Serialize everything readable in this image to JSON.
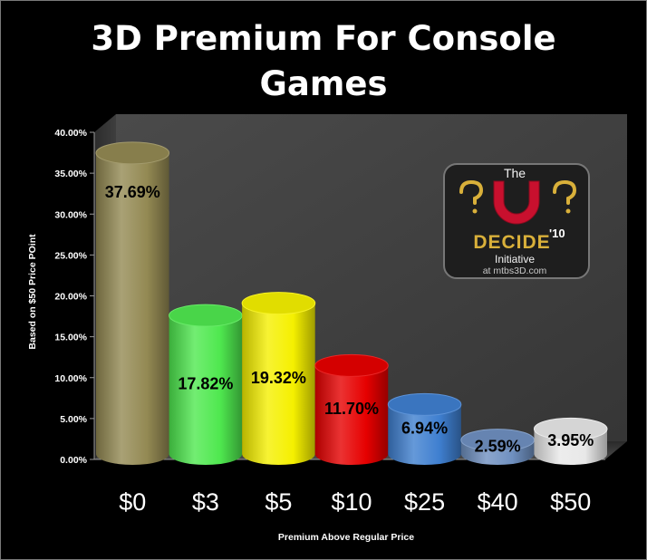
{
  "chart_data": {
    "type": "bar",
    "title": "3D Premium For Console\nGames",
    "categories": [
      "$0",
      "$3",
      "$5",
      "$10",
      "$25",
      "$40",
      "$50"
    ],
    "values": [
      37.69,
      17.82,
      19.32,
      11.7,
      6.94,
      2.59,
      3.95
    ],
    "data_labels": [
      "37.69%",
      "17.82%",
      "19.32%",
      "11.70%",
      "6.94%",
      "2.59%",
      "3.95%"
    ],
    "bar_colors": [
      "#938953",
      "#4fe84f",
      "#f5f000",
      "#e60000",
      "#3f7fd0",
      "#6f90c0",
      "#e8e8e8"
    ],
    "ylabel": "Based on $50 Price POint",
    "xlabel": "Premium Above Regular Price",
    "ylim": [
      0,
      40
    ],
    "yticks": [
      0,
      5,
      10,
      15,
      20,
      25,
      30,
      35,
      40
    ],
    "ytick_labels": [
      "0.00%",
      "5.00%",
      "10.00%",
      "15.00%",
      "20.00%",
      "25.00%",
      "30.00%",
      "35.00%",
      "40.00%"
    ],
    "grid": false,
    "legend": "none",
    "style": "3d-cylinder",
    "plot_background": "#404040",
    "page_background": "#000000"
  },
  "logo": {
    "line1": "The",
    "word": "DECIDE",
    "superscript": "'10",
    "line2": "Initiative",
    "url": "at mtbs3D.com"
  }
}
